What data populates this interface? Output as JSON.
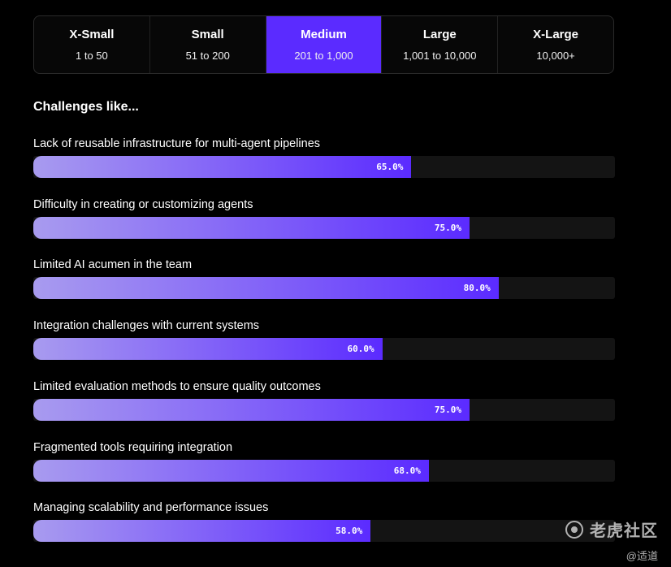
{
  "size_tabs": [
    {
      "name": "X-Small",
      "range": "1 to 50",
      "active": false
    },
    {
      "name": "Small",
      "range": "51 to 200",
      "active": false
    },
    {
      "name": "Medium",
      "range": "201 to 1,000",
      "active": true
    },
    {
      "name": "Large",
      "range": "1,001 to 10,000",
      "active": false
    },
    {
      "name": "X-Large",
      "range": "10,000+",
      "active": false
    }
  ],
  "heading": "Challenges like...",
  "chart_data": {
    "type": "bar",
    "orientation": "horizontal",
    "categories": [
      "Lack of reusable infrastructure for multi-agent pipelines",
      "Difficulty in creating or customizing agents",
      "Limited AI acumen in the team",
      "Integration challenges with current systems",
      "Limited evaluation methods to ensure quality outcomes",
      "Fragmented tools requiring integration",
      "Managing scalability and performance issues"
    ],
    "values": [
      65.0,
      75.0,
      80.0,
      60.0,
      75.0,
      68.0,
      58.0
    ],
    "value_labels": [
      "65.0%",
      "75.0%",
      "80.0%",
      "60.0%",
      "75.0%",
      "68.0%",
      "58.0%"
    ],
    "xlim": [
      0,
      100
    ],
    "unit": "%"
  },
  "colors": {
    "accent": "#5b2bff",
    "bar_start": "#a89bef",
    "track": "#141414",
    "background": "#000000"
  },
  "watermark": {
    "logo_icon": "tiger-community-logo-icon",
    "brand": "老虎社区",
    "author": "@适道"
  }
}
